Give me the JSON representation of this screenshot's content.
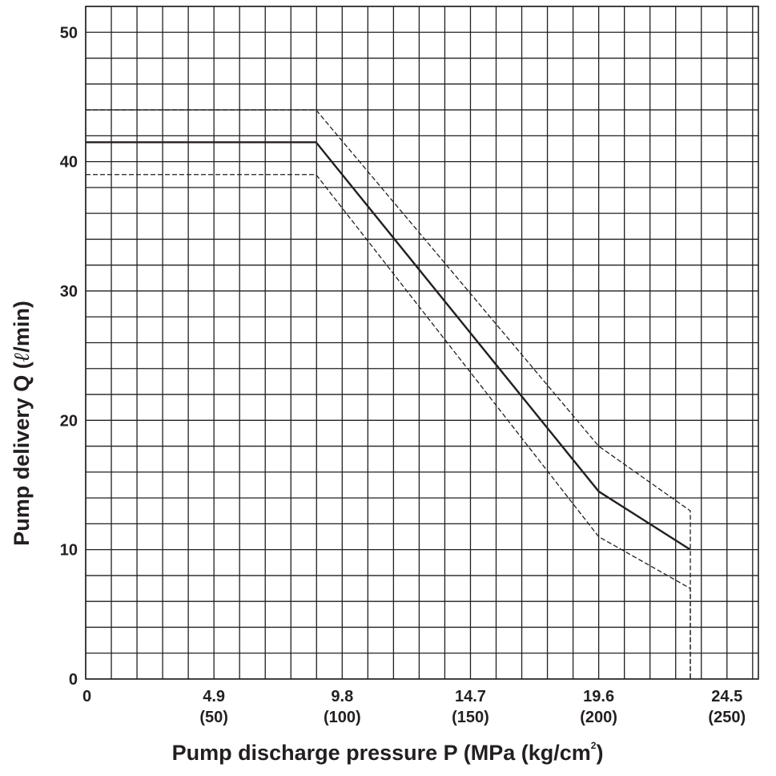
{
  "chart_data": {
    "type": "line",
    "xlabel": "Pump discharge pressure P (MPa (kg/cm",
    "xlabel_sup": "2",
    "xlabel_end": ")",
    "ylabel_prefix": "Pump delivery Q (",
    "ylabel_symbol": "ℓ",
    "ylabel_suffix": "/min)",
    "xlim": [
      0,
      25.7
    ],
    "ylim": [
      0,
      52
    ],
    "x_ticks": [
      {
        "value": 0,
        "label": "0",
        "sub": ""
      },
      {
        "value": 4.9,
        "label": "4.9",
        "sub": "(50)"
      },
      {
        "value": 9.8,
        "label": "9.8",
        "sub": "(100)"
      },
      {
        "value": 14.7,
        "label": "14.7",
        "sub": "(150)"
      },
      {
        "value": 19.6,
        "label": "19.6",
        "sub": "(200)"
      },
      {
        "value": 24.5,
        "label": "24.5",
        "sub": "(250)"
      }
    ],
    "y_ticks": [
      {
        "value": 0,
        "label": "0"
      },
      {
        "value": 10,
        "label": "10"
      },
      {
        "value": 20,
        "label": "20"
      },
      {
        "value": 30,
        "label": "30"
      },
      {
        "value": 40,
        "label": "40"
      },
      {
        "value": 50,
        "label": "50"
      }
    ],
    "grid": true,
    "grid_x_step": 0.98,
    "grid_y_step": 2,
    "series": [
      {
        "style": "solid",
        "x": [
          0,
          8.8,
          19.6,
          23.1
        ],
        "y": [
          41.5,
          41.5,
          14.5,
          10
        ]
      },
      {
        "style": "dashed",
        "x": [
          0,
          8.8,
          19.6,
          23.1,
          23.1
        ],
        "y": [
          44,
          44,
          18,
          13,
          0
        ]
      },
      {
        "style": "dashed",
        "x": [
          0,
          8.8,
          19.6,
          23.1,
          23.1
        ],
        "y": [
          39,
          39,
          11,
          7,
          0
        ]
      }
    ]
  }
}
